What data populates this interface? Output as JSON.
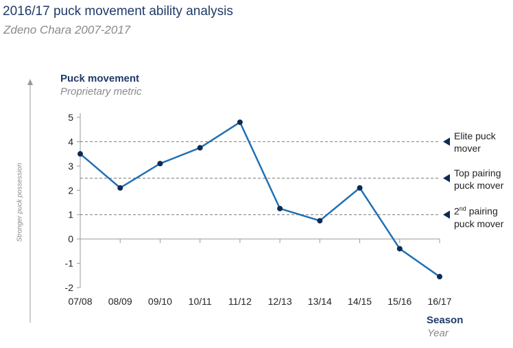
{
  "header": {
    "title": "2016/17 puck movement ability analysis",
    "subtitle": "Zdeno Chara 2007-2017"
  },
  "axes": {
    "y_title": "Puck movement",
    "y_subtitle": "Proprietary metric",
    "x_title": "Season",
    "x_subtitle": "Year",
    "side_label": "Stronger puck possession"
  },
  "reference_lines": [
    {
      "value": 4,
      "line1": "Elite puck",
      "line2": "mover",
      "sup": ""
    },
    {
      "value": 2.5,
      "line1": "Top pairing",
      "line2": "puck mover",
      "sup": ""
    },
    {
      "value": 1,
      "line1": "2",
      "sup": "nd",
      "line1_rest": " pairing",
      "line2": "puck mover"
    }
  ],
  "colors": {
    "line": "#1f6fb4",
    "marker": "#0d2a55",
    "axis": "#999999",
    "reference": "#777777"
  },
  "chart_data": {
    "type": "line",
    "title": "2016/17 puck movement ability analysis",
    "xlabel": "Season",
    "ylabel": "Puck movement",
    "categories": [
      "07/08",
      "08/09",
      "09/10",
      "10/11",
      "11/12",
      "12/13",
      "13/14",
      "14/15",
      "15/16",
      "16/17"
    ],
    "series": [
      {
        "name": "Zdeno Chara",
        "values": [
          3.5,
          2.1,
          3.1,
          3.75,
          4.8,
          1.25,
          0.75,
          2.1,
          -0.4,
          -1.55
        ]
      }
    ],
    "yticks": [
      5,
      4,
      3,
      2,
      1,
      0,
      -1,
      -2
    ],
    "ylim": [
      -2,
      5
    ]
  }
}
